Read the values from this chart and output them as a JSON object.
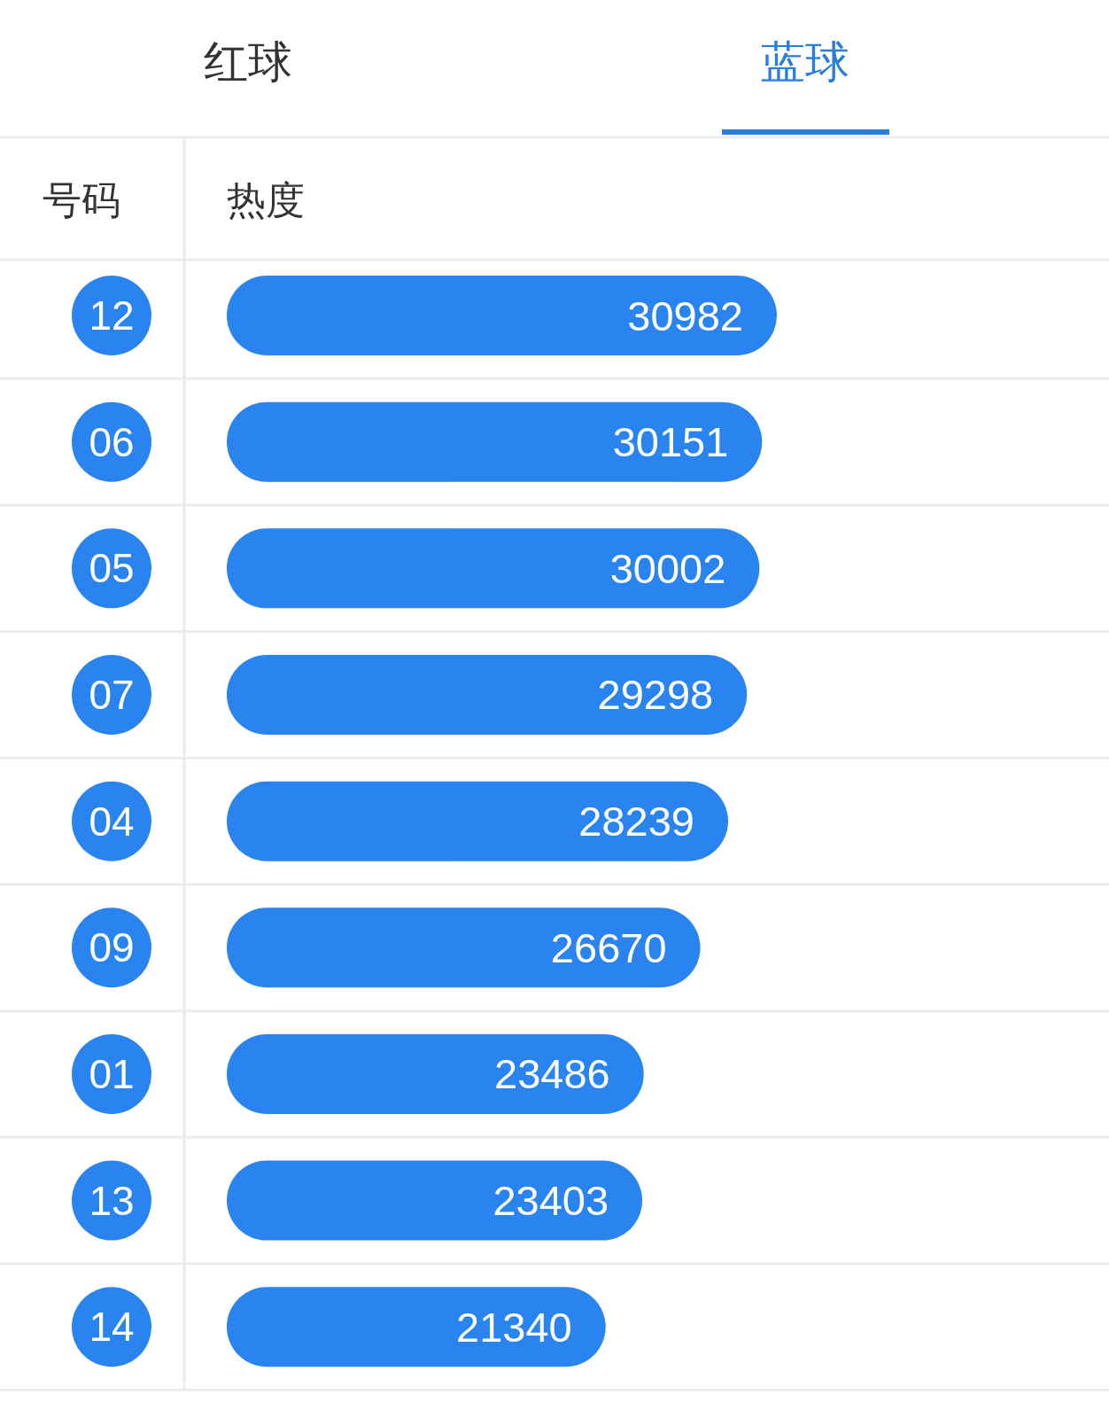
{
  "chart_data": {
    "type": "bar",
    "orientation": "horizontal",
    "title": "蓝球",
    "annotations": [
      "红球"
    ],
    "ylabel": "号码",
    "xlabel": "热度",
    "categories": [
      "12",
      "06",
      "05",
      "07",
      "04",
      "09",
      "01",
      "13",
      "14"
    ],
    "values": [
      30982,
      30151,
      30002,
      29298,
      28239,
      26670,
      23486,
      23403,
      21340
    ],
    "color": "#2a84f0",
    "data_labels": true
  }
}
